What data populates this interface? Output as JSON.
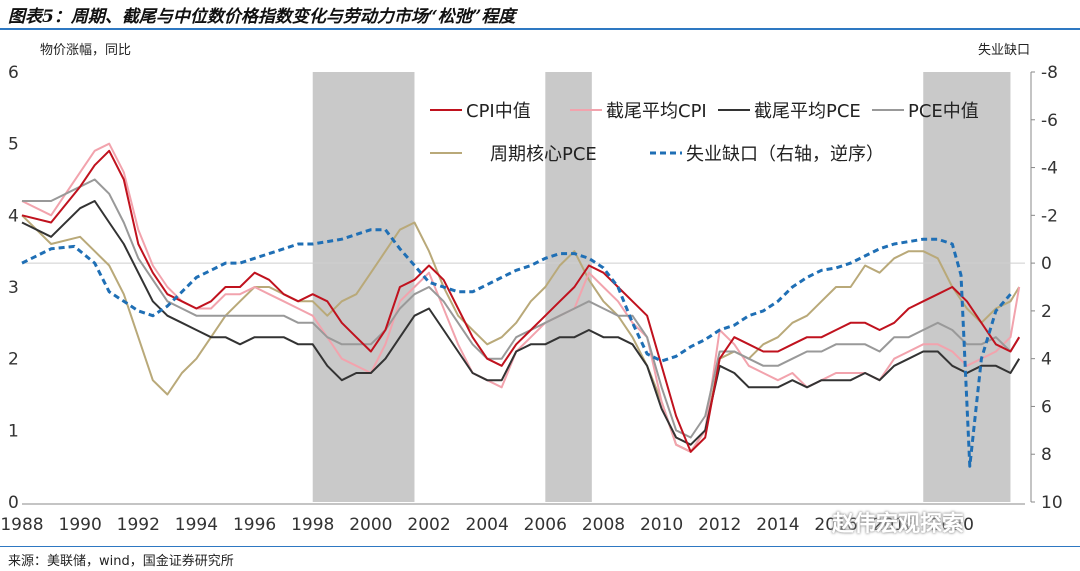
{
  "title": "图表5：周期、截尾与中位数价格指数变化与劳动力市场“松弛”程度",
  "source": "来源：美联储，wind，国金证券研究所",
  "watermark": "赵伟宏观探索",
  "chart_data": {
    "type": "line",
    "ylabel_left": "物价涨幅，同比",
    "ylabel_right": "失业缺口",
    "ylim_left": [
      0,
      6
    ],
    "ylim_right": [
      10,
      -8
    ],
    "right_axis_inverted": true,
    "xlim": [
      1988,
      2022.5
    ],
    "x_ticks": [
      "1988",
      "1990",
      "1992",
      "1994",
      "1996",
      "1998",
      "2000",
      "2002",
      "2004",
      "2006",
      "2008",
      "2010",
      "2012",
      "2014",
      "2016",
      "2018",
      "2020"
    ],
    "x_tick_values": [
      1988,
      1990,
      1992,
      1994,
      1996,
      1998,
      2000,
      2002,
      2004,
      2006,
      2008,
      2010,
      2012,
      2014,
      2016,
      2018,
      2020
    ],
    "y_ticks_left": [
      0,
      1,
      2,
      3,
      4,
      5,
      6
    ],
    "y_ticks_right": [
      10,
      8,
      6,
      4,
      2,
      0,
      -2,
      -4,
      -6,
      -8
    ],
    "recessions": [
      [
        1998.0,
        2001.5
      ],
      [
        2006.0,
        2007.6
      ],
      [
        2019.0,
        2022.0
      ]
    ],
    "series": [
      {
        "name": "CPI中值",
        "color": "#c0121e",
        "dash": "none",
        "axis": "left",
        "x": [
          1988.0,
          1989.0,
          1990.0,
          1990.5,
          1991.0,
          1991.5,
          1992.0,
          1992.5,
          1993.0,
          1993.5,
          1994.0,
          1994.5,
          1995.0,
          1995.5,
          1996.0,
          1996.5,
          1997.0,
          1997.5,
          1998.0,
          1998.5,
          1999.0,
          1999.5,
          2000.0,
          2000.5,
          2001.0,
          2001.5,
          2002.0,
          2002.5,
          2003.0,
          2003.5,
          2004.0,
          2004.5,
          2005.0,
          2005.5,
          2006.0,
          2006.5,
          2007.0,
          2007.5,
          2008.0,
          2008.5,
          2009.0,
          2009.5,
          2010.0,
          2010.5,
          2011.0,
          2011.5,
          2012.0,
          2012.5,
          2013.0,
          2013.5,
          2014.0,
          2014.5,
          2015.0,
          2015.5,
          2016.0,
          2016.5,
          2017.0,
          2017.5,
          2018.0,
          2018.5,
          2019.0,
          2019.5,
          2020.0,
          2020.5,
          2021.0,
          2021.5,
          2022.0,
          2022.3
        ],
        "y": [
          4.0,
          3.9,
          4.4,
          4.7,
          4.9,
          4.5,
          3.6,
          3.2,
          2.9,
          2.8,
          2.7,
          2.8,
          3.0,
          3.0,
          3.2,
          3.1,
          2.9,
          2.8,
          2.9,
          2.8,
          2.5,
          2.3,
          2.1,
          2.4,
          3.0,
          3.1,
          3.3,
          3.1,
          2.7,
          2.3,
          2.0,
          1.9,
          2.2,
          2.4,
          2.6,
          2.8,
          3.0,
          3.3,
          3.2,
          3.0,
          2.8,
          2.6,
          1.9,
          1.2,
          0.7,
          0.9,
          2.0,
          2.3,
          2.2,
          2.1,
          2.1,
          2.2,
          2.3,
          2.3,
          2.4,
          2.5,
          2.5,
          2.4,
          2.5,
          2.7,
          2.8,
          2.9,
          3.0,
          2.8,
          2.5,
          2.2,
          2.1,
          2.3
        ]
      },
      {
        "name": "截尾平均CPI",
        "color": "#f2a3ad",
        "dash": "none",
        "axis": "left",
        "x": [
          1988.0,
          1989.0,
          1990.0,
          1990.5,
          1991.0,
          1991.5,
          1992.0,
          1992.5,
          1993.0,
          1993.5,
          1994.0,
          1994.5,
          1995.0,
          1995.5,
          1996.0,
          1996.5,
          1997.0,
          1997.5,
          1998.0,
          1998.5,
          1999.0,
          1999.5,
          2000.0,
          2000.5,
          2001.0,
          2001.5,
          2002.0,
          2002.5,
          2003.0,
          2003.5,
          2004.0,
          2004.5,
          2005.0,
          2005.5,
          2006.0,
          2006.5,
          2007.0,
          2007.5,
          2008.0,
          2008.5,
          2009.0,
          2009.5,
          2010.0,
          2010.5,
          2011.0,
          2011.5,
          2012.0,
          2012.5,
          2013.0,
          2013.5,
          2014.0,
          2014.5,
          2015.0,
          2015.5,
          2016.0,
          2016.5,
          2017.0,
          2017.5,
          2018.0,
          2018.5,
          2019.0,
          2019.5,
          2020.0,
          2020.5,
          2021.0,
          2021.5,
          2022.0,
          2022.3
        ],
        "y": [
          4.2,
          4.0,
          4.6,
          4.9,
          5.0,
          4.6,
          3.8,
          3.3,
          3.0,
          2.8,
          2.7,
          2.7,
          2.9,
          2.9,
          3.0,
          2.9,
          2.8,
          2.7,
          2.6,
          2.3,
          2.0,
          1.9,
          1.8,
          2.2,
          2.8,
          3.0,
          3.2,
          2.7,
          2.2,
          1.8,
          1.7,
          1.6,
          2.1,
          2.3,
          2.5,
          2.6,
          2.7,
          3.2,
          3.0,
          2.8,
          2.5,
          2.3,
          1.4,
          0.8,
          0.7,
          1.0,
          2.4,
          2.2,
          1.9,
          1.8,
          1.7,
          1.8,
          1.6,
          1.7,
          1.8,
          1.8,
          1.8,
          1.7,
          2.0,
          2.1,
          2.2,
          2.2,
          2.1,
          1.9,
          2.0,
          2.1,
          2.3,
          3.0
        ]
      },
      {
        "name": "截尾平均PCE",
        "color": "#333333",
        "dash": "none",
        "axis": "left",
        "x": [
          1988.0,
          1989.0,
          1990.0,
          1990.5,
          1991.0,
          1991.5,
          1992.0,
          1992.5,
          1993.0,
          1993.5,
          1994.0,
          1994.5,
          1995.0,
          1995.5,
          1996.0,
          1996.5,
          1997.0,
          1997.5,
          1998.0,
          1998.5,
          1999.0,
          1999.5,
          2000.0,
          2000.5,
          2001.0,
          2001.5,
          2002.0,
          2002.5,
          2003.0,
          2003.5,
          2004.0,
          2004.5,
          2005.0,
          2005.5,
          2006.0,
          2006.5,
          2007.0,
          2007.5,
          2008.0,
          2008.5,
          2009.0,
          2009.5,
          2010.0,
          2010.5,
          2011.0,
          2011.5,
          2012.0,
          2012.5,
          2013.0,
          2013.5,
          2014.0,
          2014.5,
          2015.0,
          2015.5,
          2016.0,
          2016.5,
          2017.0,
          2017.5,
          2018.0,
          2018.5,
          2019.0,
          2019.5,
          2020.0,
          2020.5,
          2021.0,
          2021.5,
          2022.0,
          2022.3
        ],
        "y": [
          3.9,
          3.7,
          4.1,
          4.2,
          3.9,
          3.6,
          3.2,
          2.8,
          2.6,
          2.5,
          2.4,
          2.3,
          2.3,
          2.2,
          2.3,
          2.3,
          2.3,
          2.2,
          2.2,
          1.9,
          1.7,
          1.8,
          1.8,
          2.0,
          2.3,
          2.6,
          2.7,
          2.4,
          2.1,
          1.8,
          1.7,
          1.7,
          2.1,
          2.2,
          2.2,
          2.3,
          2.3,
          2.4,
          2.3,
          2.3,
          2.2,
          1.9,
          1.3,
          0.9,
          0.8,
          1.0,
          1.9,
          1.8,
          1.6,
          1.6,
          1.6,
          1.7,
          1.6,
          1.7,
          1.7,
          1.7,
          1.8,
          1.7,
          1.9,
          2.0,
          2.1,
          2.1,
          1.9,
          1.8,
          1.9,
          1.9,
          1.8,
          2.0
        ]
      },
      {
        "name": "PCE中值",
        "color": "#999999",
        "dash": "none",
        "axis": "left",
        "x": [
          1988.0,
          1989.0,
          1990.0,
          1990.5,
          1991.0,
          1991.5,
          1992.0,
          1992.5,
          1993.0,
          1993.5,
          1994.0,
          1994.5,
          1995.0,
          1995.5,
          1996.0,
          1996.5,
          1997.0,
          1997.5,
          1998.0,
          1998.5,
          1999.0,
          1999.5,
          2000.0,
          2000.5,
          2001.0,
          2001.5,
          2002.0,
          2002.5,
          2003.0,
          2003.5,
          2004.0,
          2004.5,
          2005.0,
          2005.5,
          2006.0,
          2006.5,
          2007.0,
          2007.5,
          2008.0,
          2008.5,
          2009.0,
          2009.5,
          2010.0,
          2010.5,
          2011.0,
          2011.5,
          2012.0,
          2012.5,
          2013.0,
          2013.5,
          2014.0,
          2014.5,
          2015.0,
          2015.5,
          2016.0,
          2016.5,
          2017.0,
          2017.5,
          2018.0,
          2018.5,
          2019.0,
          2019.5,
          2020.0,
          2020.5,
          2021.0,
          2021.5,
          2022.0,
          2022.3
        ],
        "y": [
          4.2,
          4.2,
          4.4,
          4.5,
          4.3,
          3.9,
          3.4,
          3.1,
          2.8,
          2.7,
          2.6,
          2.6,
          2.6,
          2.6,
          2.6,
          2.6,
          2.6,
          2.5,
          2.5,
          2.3,
          2.2,
          2.2,
          2.2,
          2.4,
          2.7,
          2.9,
          3.0,
          2.8,
          2.5,
          2.2,
          2.0,
          2.0,
          2.3,
          2.4,
          2.5,
          2.6,
          2.7,
          2.8,
          2.7,
          2.6,
          2.6,
          2.3,
          1.6,
          1.0,
          0.9,
          1.2,
          2.1,
          2.1,
          2.0,
          1.9,
          1.9,
          2.0,
          2.1,
          2.1,
          2.2,
          2.2,
          2.2,
          2.1,
          2.3,
          2.3,
          2.4,
          2.5,
          2.4,
          2.2,
          2.2,
          2.3,
          2.1,
          2.3
        ]
      },
      {
        "name": "周期核心PCE",
        "color": "#b9a979",
        "dash": "none",
        "axis": "left",
        "x": [
          1988.0,
          1989.0,
          1990.0,
          1990.5,
          1991.0,
          1991.5,
          1992.0,
          1992.5,
          1993.0,
          1993.5,
          1994.0,
          1994.5,
          1995.0,
          1995.5,
          1996.0,
          1996.5,
          1997.0,
          1997.5,
          1998.0,
          1998.5,
          1999.0,
          1999.5,
          2000.0,
          2000.5,
          2001.0,
          2001.5,
          2002.0,
          2002.5,
          2003.0,
          2003.5,
          2004.0,
          2004.5,
          2005.0,
          2005.5,
          2006.0,
          2006.5,
          2007.0,
          2007.5,
          2008.0,
          2008.5,
          2009.0,
          2009.5,
          2010.0,
          2010.5,
          2011.0,
          2011.5,
          2012.0,
          2012.5,
          2013.0,
          2013.5,
          2014.0,
          2014.5,
          2015.0,
          2015.5,
          2016.0,
          2016.5,
          2017.0,
          2017.5,
          2018.0,
          2018.5,
          2019.0,
          2019.5,
          2020.0,
          2020.5,
          2021.0,
          2021.5,
          2022.0,
          2022.3
        ],
        "y": [
          4.0,
          3.6,
          3.7,
          3.5,
          3.3,
          2.9,
          2.3,
          1.7,
          1.5,
          1.8,
          2.0,
          2.3,
          2.6,
          2.8,
          3.0,
          3.0,
          2.9,
          2.8,
          2.8,
          2.6,
          2.8,
          2.9,
          3.2,
          3.5,
          3.8,
          3.9,
          3.5,
          3.0,
          2.6,
          2.4,
          2.2,
          2.3,
          2.5,
          2.8,
          3.0,
          3.3,
          3.5,
          3.1,
          2.8,
          2.6,
          2.3,
          1.9,
          1.4,
          0.8,
          0.7,
          1.0,
          2.0,
          2.1,
          2.0,
          2.2,
          2.3,
          2.5,
          2.6,
          2.8,
          3.0,
          3.0,
          3.3,
          3.2,
          3.4,
          3.5,
          3.5,
          3.4,
          3.0,
          2.7,
          2.5,
          2.7,
          2.8,
          3.0
        ]
      },
      {
        "name": "失业缺口（右轴，逆序）",
        "color": "#1f6fb5",
        "dash": "6,4",
        "axis": "right",
        "x": [
          1988.0,
          1989.0,
          1989.8,
          1990.5,
          1991.0,
          1991.5,
          1992.0,
          1992.5,
          1993.0,
          1993.5,
          1994.0,
          1994.5,
          1995.0,
          1995.5,
          1996.0,
          1996.5,
          1997.0,
          1997.5,
          1998.0,
          1998.5,
          1999.0,
          1999.5,
          2000.0,
          2000.5,
          2001.0,
          2001.5,
          2002.0,
          2002.5,
          2003.0,
          2003.5,
          2004.0,
          2004.5,
          2005.0,
          2005.5,
          2006.0,
          2006.5,
          2007.0,
          2007.5,
          2008.0,
          2008.5,
          2009.0,
          2009.5,
          2010.0,
          2010.5,
          2011.0,
          2011.5,
          2012.0,
          2012.5,
          2013.0,
          2013.5,
          2014.0,
          2014.5,
          2015.0,
          2015.5,
          2016.0,
          2016.5,
          2017.0,
          2017.5,
          2018.0,
          2018.5,
          2019.0,
          2019.5,
          2020.0,
          2020.3,
          2020.6,
          2021.0,
          2021.5,
          2022.0
        ],
        "y": [
          0.0,
          -0.6,
          -0.7,
          0.0,
          1.2,
          1.6,
          2.0,
          2.2,
          1.8,
          1.2,
          0.6,
          0.3,
          0.0,
          0.0,
          -0.2,
          -0.4,
          -0.6,
          -0.8,
          -0.8,
          -0.9,
          -1.0,
          -1.2,
          -1.4,
          -1.4,
          -0.6,
          0.1,
          0.8,
          1.0,
          1.2,
          1.2,
          0.9,
          0.6,
          0.3,
          0.1,
          -0.2,
          -0.4,
          -0.4,
          -0.2,
          0.2,
          1.0,
          2.5,
          3.8,
          4.1,
          3.9,
          3.5,
          3.2,
          2.8,
          2.6,
          2.2,
          2.0,
          1.6,
          1.0,
          0.6,
          0.3,
          0.2,
          0.0,
          -0.3,
          -0.6,
          -0.8,
          -0.9,
          -1.0,
          -1.0,
          -0.8,
          0.5,
          8.5,
          4.0,
          2.0,
          1.3
        ]
      }
    ]
  }
}
